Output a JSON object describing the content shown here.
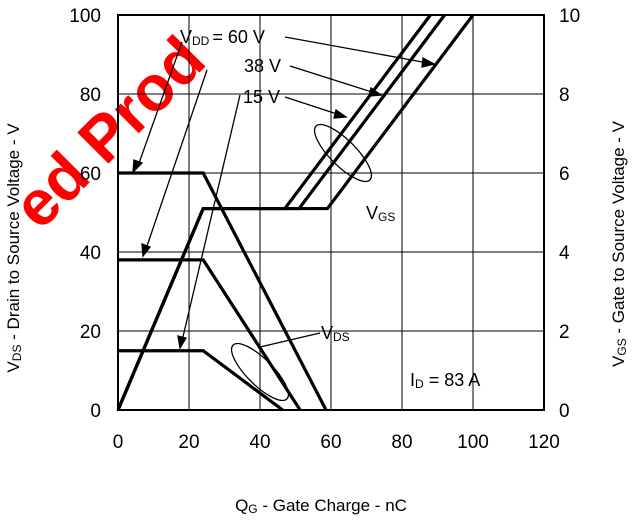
{
  "chart_data": {
    "type": "line",
    "x_axis": {
      "range": [
        0,
        120
      ],
      "ticks": [
        0,
        20,
        40,
        60,
        80,
        100,
        120
      ],
      "label": {
        "main": "Q",
        "sub": "G",
        "rest": " - Gate Charge - nC"
      }
    },
    "y_left": {
      "range": [
        0,
        100
      ],
      "ticks": [
        0,
        20,
        40,
        60,
        80,
        100
      ],
      "label": {
        "main": "V",
        "sub": "DS",
        "rest": " - Drain to Source Voltage - V"
      }
    },
    "y_right": {
      "range": [
        0,
        10
      ],
      "ticks": [
        0,
        2,
        4,
        6,
        8,
        10
      ],
      "label": {
        "main": "V",
        "sub": "GS",
        "rest": " - Gate to Source  Voltage - V"
      }
    },
    "grid": true,
    "series_vds": [
      {
        "vdd": "60 V",
        "points": [
          [
            0,
            60
          ],
          [
            24,
            60
          ],
          [
            58.6,
            0
          ]
        ]
      },
      {
        "vdd": "38 V",
        "points": [
          [
            0,
            38
          ],
          [
            24,
            38
          ],
          [
            51.3,
            0
          ]
        ]
      },
      {
        "vdd": "15 V",
        "points": [
          [
            0,
            15
          ],
          [
            24,
            15
          ],
          [
            46.4,
            0
          ]
        ]
      }
    ],
    "series_vgs": [
      {
        "vdd": "60 V",
        "points": [
          [
            0,
            0
          ],
          [
            24,
            5.1
          ],
          [
            59,
            5.1
          ],
          [
            100,
            10
          ]
        ]
      },
      {
        "vdd": "38 V",
        "points": [
          [
            0,
            0
          ],
          [
            24,
            5.1
          ],
          [
            51,
            5.1
          ],
          [
            92,
            10
          ]
        ]
      },
      {
        "vdd": "15 V",
        "points": [
          [
            0,
            0
          ],
          [
            24,
            5.1
          ],
          [
            47,
            5.1
          ],
          [
            88,
            10
          ]
        ]
      }
    ],
    "annotations": {
      "vdd_label_main": "V",
      "vdd_label_sub": "DD",
      "vdd_values": [
        "= 60 V",
        "38 V",
        "15 V"
      ],
      "vgs_main": "V",
      "vgs_sub": "GS",
      "vds_main": "V",
      "vds_sub": "DS",
      "id_main": "I",
      "id_sub": "D",
      "id_rest": " = 83 A"
    }
  },
  "watermark": {
    "text": "ed Prod",
    "color": "#ff0000"
  }
}
